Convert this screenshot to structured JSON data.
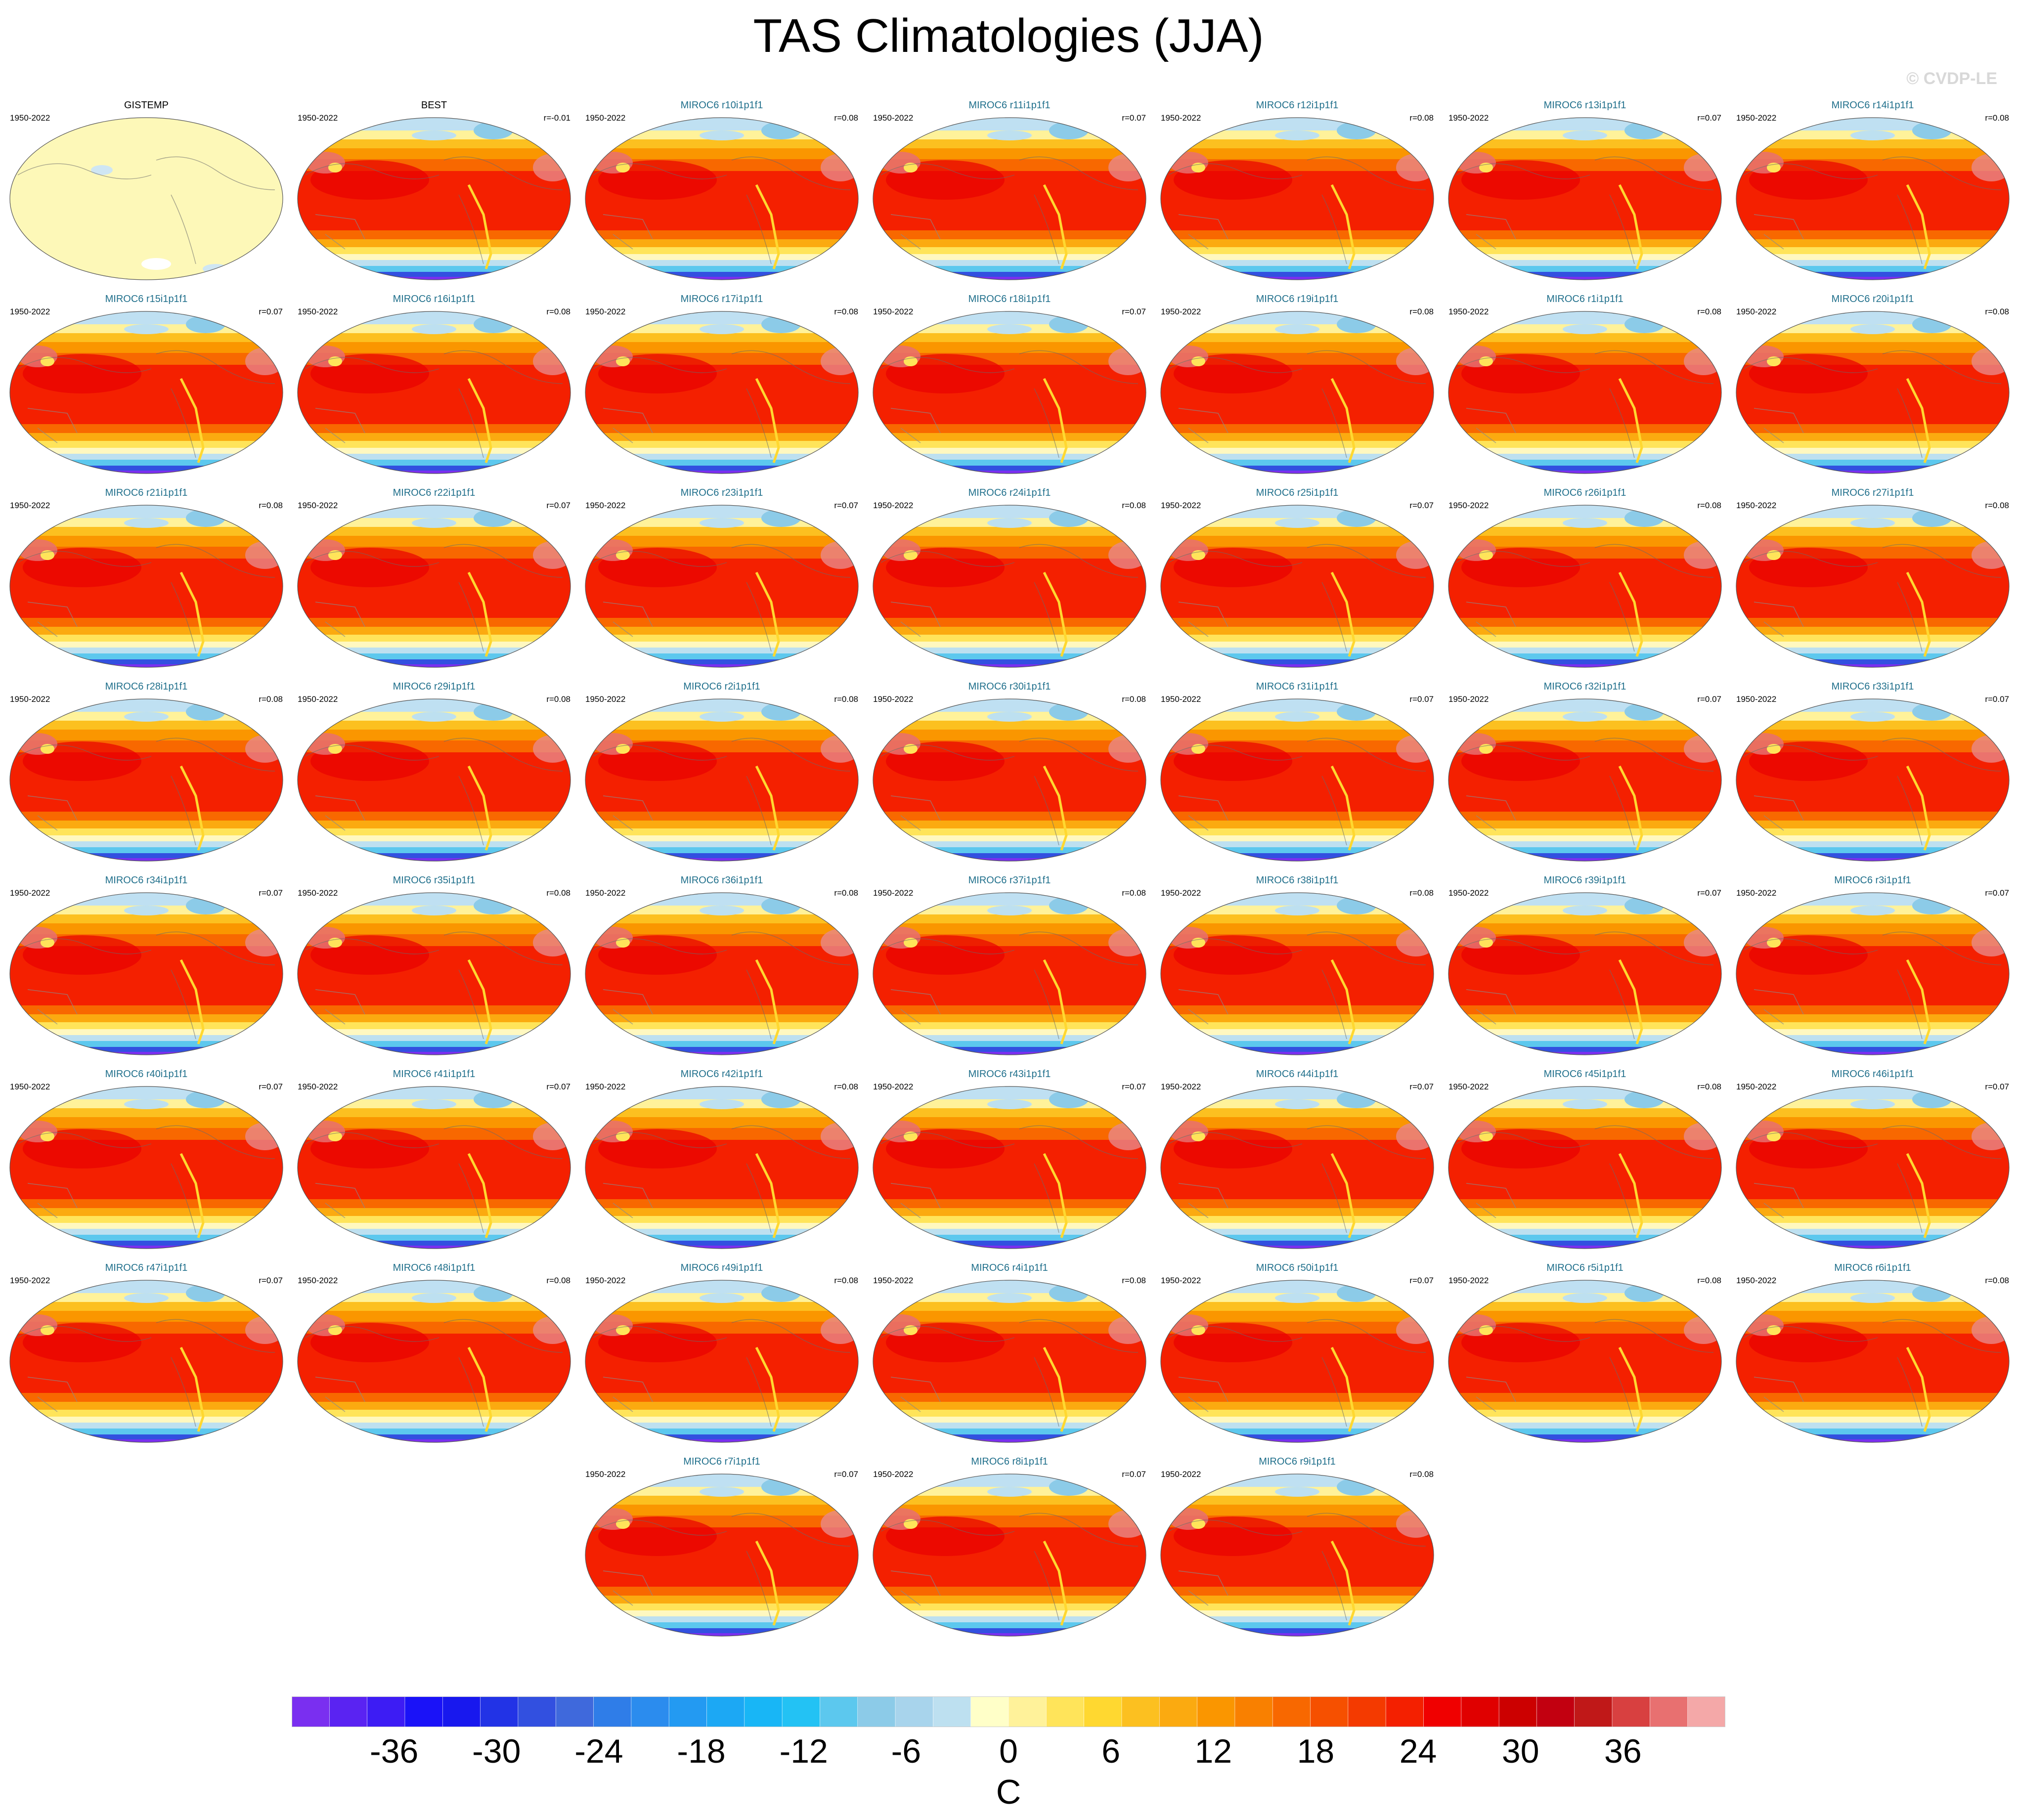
{
  "title": "TAS Climatologies (JJA)",
  "watermark": "© CVDP-LE",
  "chart_data": {
    "type": "map-panel-grid",
    "variable": "TAS",
    "season": "JJA",
    "period": "1950-2022",
    "panels": [
      {
        "title": "GISTEMP",
        "period": "1950-2022",
        "r": "",
        "kind": "obs-missing"
      },
      {
        "title": "BEST",
        "period": "1950-2022",
        "r": "r=-0.01",
        "kind": "obs"
      },
      {
        "title": "MIROC6 r10i1p1f1",
        "period": "1950-2022",
        "r": "r=0.08",
        "kind": "member"
      },
      {
        "title": "MIROC6 r11i1p1f1",
        "period": "1950-2022",
        "r": "r=0.07",
        "kind": "member"
      },
      {
        "title": "MIROC6 r12i1p1f1",
        "period": "1950-2022",
        "r": "r=0.08",
        "kind": "member"
      },
      {
        "title": "MIROC6 r13i1p1f1",
        "period": "1950-2022",
        "r": "r=0.07",
        "kind": "member"
      },
      {
        "title": "MIROC6 r14i1p1f1",
        "period": "1950-2022",
        "r": "r=0.08",
        "kind": "member"
      },
      {
        "title": "MIROC6 r15i1p1f1",
        "period": "1950-2022",
        "r": "r=0.07",
        "kind": "member"
      },
      {
        "title": "MIROC6 r16i1p1f1",
        "period": "1950-2022",
        "r": "r=0.08",
        "kind": "member"
      },
      {
        "title": "MIROC6 r17i1p1f1",
        "period": "1950-2022",
        "r": "r=0.08",
        "kind": "member"
      },
      {
        "title": "MIROC6 r18i1p1f1",
        "period": "1950-2022",
        "r": "r=0.07",
        "kind": "member"
      },
      {
        "title": "MIROC6 r19i1p1f1",
        "period": "1950-2022",
        "r": "r=0.08",
        "kind": "member"
      },
      {
        "title": "MIROC6 r1i1p1f1",
        "period": "1950-2022",
        "r": "r=0.08",
        "kind": "member"
      },
      {
        "title": "MIROC6 r20i1p1f1",
        "period": "1950-2022",
        "r": "r=0.08",
        "kind": "member"
      },
      {
        "title": "MIROC6 r21i1p1f1",
        "period": "1950-2022",
        "r": "r=0.08",
        "kind": "member"
      },
      {
        "title": "MIROC6 r22i1p1f1",
        "period": "1950-2022",
        "r": "r=0.07",
        "kind": "member"
      },
      {
        "title": "MIROC6 r23i1p1f1",
        "period": "1950-2022",
        "r": "r=0.07",
        "kind": "member"
      },
      {
        "title": "MIROC6 r24i1p1f1",
        "period": "1950-2022",
        "r": "r=0.08",
        "kind": "member"
      },
      {
        "title": "MIROC6 r25i1p1f1",
        "period": "1950-2022",
        "r": "r=0.07",
        "kind": "member"
      },
      {
        "title": "MIROC6 r26i1p1f1",
        "period": "1950-2022",
        "r": "r=0.08",
        "kind": "member"
      },
      {
        "title": "MIROC6 r27i1p1f1",
        "period": "1950-2022",
        "r": "r=0.08",
        "kind": "member"
      },
      {
        "title": "MIROC6 r28i1p1f1",
        "period": "1950-2022",
        "r": "r=0.08",
        "kind": "member"
      },
      {
        "title": "MIROC6 r29i1p1f1",
        "period": "1950-2022",
        "r": "r=0.08",
        "kind": "member"
      },
      {
        "title": "MIROC6 r2i1p1f1",
        "period": "1950-2022",
        "r": "r=0.08",
        "kind": "member"
      },
      {
        "title": "MIROC6 r30i1p1f1",
        "period": "1950-2022",
        "r": "r=0.08",
        "kind": "member"
      },
      {
        "title": "MIROC6 r31i1p1f1",
        "period": "1950-2022",
        "r": "r=0.07",
        "kind": "member"
      },
      {
        "title": "MIROC6 r32i1p1f1",
        "period": "1950-2022",
        "r": "r=0.07",
        "kind": "member"
      },
      {
        "title": "MIROC6 r33i1p1f1",
        "period": "1950-2022",
        "r": "r=0.07",
        "kind": "member"
      },
      {
        "title": "MIROC6 r34i1p1f1",
        "period": "1950-2022",
        "r": "r=0.07",
        "kind": "member"
      },
      {
        "title": "MIROC6 r35i1p1f1",
        "period": "1950-2022",
        "r": "r=0.08",
        "kind": "member"
      },
      {
        "title": "MIROC6 r36i1p1f1",
        "period": "1950-2022",
        "r": "r=0.08",
        "kind": "member"
      },
      {
        "title": "MIROC6 r37i1p1f1",
        "period": "1950-2022",
        "r": "r=0.08",
        "kind": "member"
      },
      {
        "title": "MIROC6 r38i1p1f1",
        "period": "1950-2022",
        "r": "r=0.08",
        "kind": "member"
      },
      {
        "title": "MIROC6 r39i1p1f1",
        "period": "1950-2022",
        "r": "r=0.07",
        "kind": "member"
      },
      {
        "title": "MIROC6 r3i1p1f1",
        "period": "1950-2022",
        "r": "r=0.07",
        "kind": "member"
      },
      {
        "title": "MIROC6 r40i1p1f1",
        "period": "1950-2022",
        "r": "r=0.07",
        "kind": "member"
      },
      {
        "title": "MIROC6 r41i1p1f1",
        "period": "1950-2022",
        "r": "r=0.07",
        "kind": "member"
      },
      {
        "title": "MIROC6 r42i1p1f1",
        "period": "1950-2022",
        "r": "r=0.08",
        "kind": "member"
      },
      {
        "title": "MIROC6 r43i1p1f1",
        "period": "1950-2022",
        "r": "r=0.07",
        "kind": "member"
      },
      {
        "title": "MIROC6 r44i1p1f1",
        "period": "1950-2022",
        "r": "r=0.07",
        "kind": "member"
      },
      {
        "title": "MIROC6 r45i1p1f1",
        "period": "1950-2022",
        "r": "r=0.08",
        "kind": "member"
      },
      {
        "title": "MIROC6 r46i1p1f1",
        "period": "1950-2022",
        "r": "r=0.07",
        "kind": "member"
      },
      {
        "title": "MIROC6 r47i1p1f1",
        "period": "1950-2022",
        "r": "r=0.07",
        "kind": "member"
      },
      {
        "title": "MIROC6 r48i1p1f1",
        "period": "1950-2022",
        "r": "r=0.08",
        "kind": "member"
      },
      {
        "title": "MIROC6 r49i1p1f1",
        "period": "1950-2022",
        "r": "r=0.08",
        "kind": "member"
      },
      {
        "title": "MIROC6 r4i1p1f1",
        "period": "1950-2022",
        "r": "r=0.08",
        "kind": "member"
      },
      {
        "title": "MIROC6 r50i1p1f1",
        "period": "1950-2022",
        "r": "r=0.07",
        "kind": "member"
      },
      {
        "title": "MIROC6 r5i1p1f1",
        "period": "1950-2022",
        "r": "r=0.08",
        "kind": "member"
      },
      {
        "title": "MIROC6 r6i1p1f1",
        "period": "1950-2022",
        "r": "r=0.08",
        "kind": "member"
      },
      {
        "title": "MIROC6 r7i1p1f1",
        "period": "1950-2022",
        "r": "r=0.07",
        "kind": "member"
      },
      {
        "title": "MIROC6 r8i1p1f1",
        "period": "1950-2022",
        "r": "r=0.07",
        "kind": "member"
      },
      {
        "title": "MIROC6 r9i1p1f1",
        "period": "1950-2022",
        "r": "r=0.08",
        "kind": "member"
      }
    ],
    "colorbar": {
      "unit": "C",
      "tick_labels": [
        "-36",
        "-30",
        "-24",
        "-18",
        "-12",
        "-6",
        "0",
        "6",
        "12",
        "18",
        "24",
        "30",
        "36"
      ],
      "tick_values": [
        -36,
        -30,
        -24,
        -18,
        -12,
        -6,
        0,
        6,
        12,
        18,
        24,
        30,
        36
      ],
      "range": [
        -42,
        42
      ],
      "colors": [
        "#7a2ff0",
        "#5a23f2",
        "#3d1cf4",
        "#1a12f8",
        "#1818ee",
        "#2233e6",
        "#3250e0",
        "#3f69dc",
        "#2f7de8",
        "#2b8cee",
        "#239af2",
        "#1ca8f4",
        "#18b6f6",
        "#23c2f4",
        "#5cc8ee",
        "#8ccbe8",
        "#a8d4ec",
        "#bde0f0",
        "#ffffc8",
        "#fff29a",
        "#ffe45a",
        "#ffd830",
        "#fcc020",
        "#fbaa10",
        "#fa9600",
        "#f98000",
        "#f86800",
        "#f65000",
        "#f43a00",
        "#f42000",
        "#f00000",
        "#e00000",
        "#cc0000",
        "#c20010",
        "#c01818",
        "#d84040",
        "#e87070",
        "#f4a8a8"
      ]
    }
  }
}
